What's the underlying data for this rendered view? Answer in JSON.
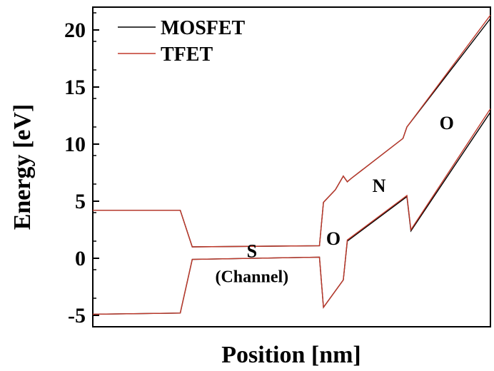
{
  "chart_data": {
    "type": "line",
    "title": "",
    "xlabel": "Position [nm]",
    "ylabel": "Energy [eV]",
    "ylim": [
      -6,
      22
    ],
    "xlim": [
      0,
      100
    ],
    "xticks_shown": false,
    "yticks": [
      {
        "value": 20,
        "label": "20"
      },
      {
        "value": 15,
        "label": "15"
      },
      {
        "value": 10,
        "label": "10"
      },
      {
        "value": 5,
        "label": "5"
      },
      {
        "value": 0,
        "label": "0"
      },
      {
        "value": -5,
        "label": "-5"
      }
    ],
    "grid": false,
    "legend_position": "top-left",
    "series": [
      {
        "name": "MOSFET",
        "color": "#000000",
        "bands": [
          {
            "x": [
              0,
              22,
              25,
              57,
              58,
              61,
              63,
              64,
              65,
              78,
              79,
              100
            ],
            "y": [
              4.2,
              4.2,
              1.0,
              1.1,
              4.9,
              6.0,
              7.2,
              6.7,
              7.0,
              10.5,
              11.5,
              21.0
            ]
          },
          {
            "x": [
              0,
              22,
              25,
              57,
              58,
              63,
              64,
              79,
              80,
              100
            ],
            "y": [
              -4.9,
              -4.8,
              -0.1,
              0.1,
              -4.3,
              -1.9,
              1.5,
              5.4,
              2.4,
              12.8
            ]
          }
        ]
      },
      {
        "name": "TFET",
        "color": "#c0392b",
        "bands": [
          {
            "x": [
              0,
              22,
              25,
              57,
              58,
              61,
              63,
              64,
              65,
              78,
              79,
              100
            ],
            "y": [
              4.2,
              4.2,
              1.0,
              1.1,
              4.9,
              6.0,
              7.2,
              6.7,
              7.0,
              10.5,
              11.5,
              21.3
            ]
          },
          {
            "x": [
              0,
              22,
              25,
              57,
              58,
              63,
              64,
              79,
              80,
              100
            ],
            "y": [
              -4.9,
              -4.8,
              -0.1,
              0.1,
              -4.3,
              -1.9,
              1.6,
              5.5,
              2.5,
              13.1
            ]
          }
        ]
      }
    ],
    "annotations": [
      {
        "text": "S",
        "x": 40,
        "y": 0.1,
        "size": "large"
      },
      {
        "text": "(Channel)",
        "x": 40,
        "y": -2.1,
        "size": "small"
      },
      {
        "text": "O",
        "x": 60.5,
        "y": 1.2,
        "size": "large"
      },
      {
        "text": "N",
        "x": 72,
        "y": 5.8,
        "size": "large"
      },
      {
        "text": "O",
        "x": 89,
        "y": 11.3,
        "size": "large"
      }
    ]
  }
}
